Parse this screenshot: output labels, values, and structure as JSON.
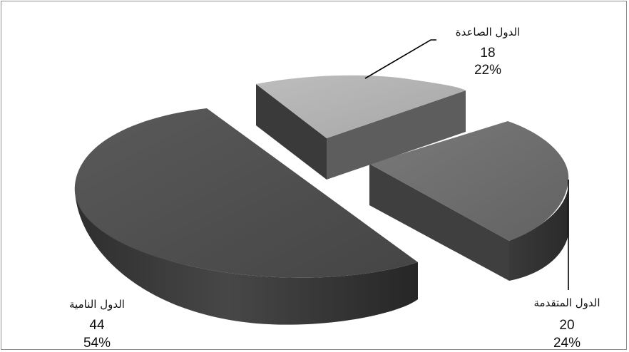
{
  "chart_data": {
    "type": "pie",
    "title": "",
    "categories": [
      "الدول الصاعدة",
      "الدول المتقدمة",
      "الدول النامية"
    ],
    "values": [
      18,
      20,
      44
    ],
    "percentages": [
      "22%",
      "24%",
      "54%"
    ],
    "value_labels": [
      "18",
      "20",
      "44"
    ],
    "colors": {
      "الدول الصاعدة": "#b3b3b3",
      "الدول المتقدمة": "#6e6e6e",
      "الدول النامية": "#4f4f4f"
    },
    "style": "3d-exploded",
    "legend": "none"
  }
}
